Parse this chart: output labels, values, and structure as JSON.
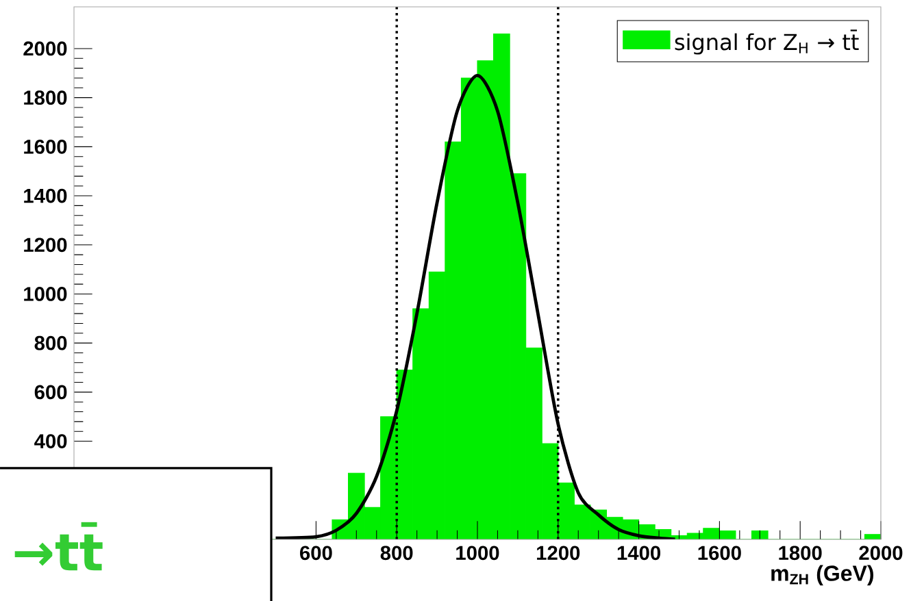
{
  "chart_data": {
    "type": "histogram",
    "series": [
      {
        "name": "signal for Z$_{H}$ → tt̄",
        "type": "histogram",
        "color": "#00ee00",
        "bins": [
          0,
          40,
          80,
          120,
          160,
          200,
          240,
          280,
          320,
          360,
          400,
          440,
          480,
          520,
          560,
          600,
          640,
          680,
          720,
          760,
          800,
          840,
          880,
          920,
          960,
          1000,
          1040,
          1080,
          1120,
          1160,
          1200,
          1240,
          1280,
          1320,
          1360,
          1400,
          1440,
          1480,
          1520,
          1560,
          1600,
          1640,
          1680,
          1720,
          1760,
          1800,
          1840,
          1880,
          1920,
          1960,
          2000
        ],
        "values": [
          0,
          0,
          0,
          0,
          0,
          0,
          0,
          0,
          0,
          0,
          0,
          0,
          0,
          0,
          0,
          0,
          80,
          270,
          130,
          500,
          690,
          940,
          1090,
          1620,
          1880,
          1950,
          2060,
          1490,
          780,
          390,
          230,
          140,
          120,
          90,
          80,
          60,
          40,
          15,
          25,
          45,
          35,
          0,
          35,
          0,
          0,
          0,
          0,
          0,
          0,
          20
        ]
      },
      {
        "type": "line",
        "color": "#000000",
        "x": [
          500,
          600,
          650,
          700,
          750,
          800,
          850,
          900,
          950,
          1000,
          1050,
          1100,
          1150,
          1200,
          1250,
          1300,
          1350,
          1400,
          1450,
          1490
        ],
        "values": [
          5,
          11,
          37,
          106,
          256,
          524,
          920,
          1372,
          1745,
          1890,
          1745,
          1372,
          920,
          470,
          190,
          100,
          40,
          15,
          5,
          0
        ]
      }
    ],
    "xlabel": "m$_{ZH}$ (GeV)",
    "xlim": [
      0,
      2000
    ],
    "xticks": [
      600,
      800,
      1000,
      1200,
      1400,
      1600,
      1800,
      2000
    ],
    "ylim": [
      0,
      2170
    ],
    "yticks": [
      400,
      600,
      800,
      1000,
      1200,
      1400,
      1600,
      1800,
      2000
    ],
    "ref_lines": [
      {
        "axis": "x",
        "value": 800,
        "line_style": "dotted",
        "color": "#000000"
      },
      {
        "axis": "x",
        "value": 1200,
        "line_style": "dotted",
        "color": "#000000"
      }
    ],
    "legend": "top right",
    "annotations": [
      "→tt̄"
    ]
  }
}
